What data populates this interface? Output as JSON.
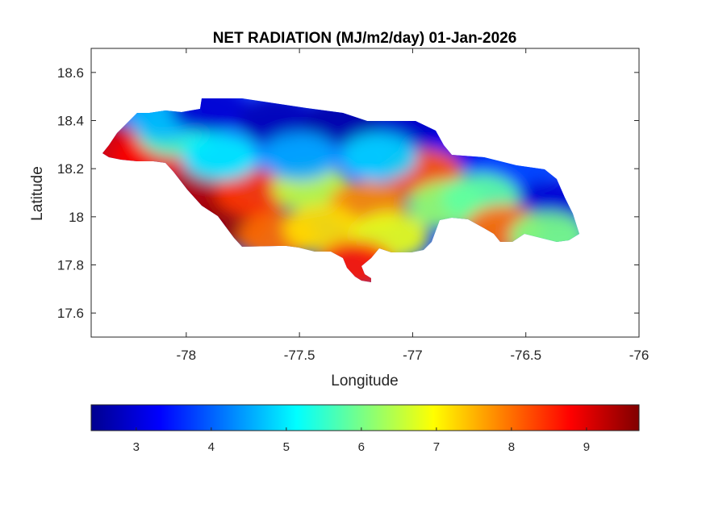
{
  "chart_data": {
    "type": "heatmap",
    "title": "NET RADIATION (MJ/m2/day) 01-Jan-2026",
    "xlabel": "Longitude",
    "ylabel": "Latitude",
    "xlim": [
      -78.42,
      -76
    ],
    "ylim": [
      17.5,
      18.7
    ],
    "xticks": [
      -78,
      -77.5,
      -77,
      -76.5,
      -76
    ],
    "yticks": [
      17.6,
      17.8,
      18,
      18.2,
      18.4,
      18.6
    ],
    "xtick_labels": [
      "-78",
      "-77.5",
      "-77",
      "-76.5",
      "-76"
    ],
    "ytick_labels": [
      "17.6",
      "17.8",
      "18",
      "18.2",
      "18.4",
      "18.6"
    ],
    "colorbar": {
      "colormap": "jet",
      "range": [
        2.4,
        9.7
      ],
      "ticks": [
        3,
        4,
        5,
        6,
        7,
        8,
        9
      ],
      "tick_labels": [
        "3",
        "4",
        "5",
        "6",
        "7",
        "8",
        "9"
      ],
      "placement": "bottom"
    },
    "grid": false,
    "zones": [
      {
        "lon": -78.3,
        "lat": 18.28,
        "value": 9.0
      },
      {
        "lon": -78.15,
        "lat": 18.25,
        "value": 8.8
      },
      {
        "lon": -77.95,
        "lat": 18.1,
        "value": 9.3
      },
      {
        "lon": -77.8,
        "lat": 17.98,
        "value": 9.5
      },
      {
        "lon": -77.7,
        "lat": 18.1,
        "value": 8.4
      },
      {
        "lon": -77.6,
        "lat": 17.92,
        "value": 8.0
      },
      {
        "lon": -78.05,
        "lat": 18.35,
        "value": 5.5
      },
      {
        "lon": -77.85,
        "lat": 18.25,
        "value": 5.0
      },
      {
        "lon": -78.1,
        "lat": 18.42,
        "value": 4.6
      },
      {
        "lon": -77.9,
        "lat": 18.45,
        "value": 3.0
      },
      {
        "lon": -77.6,
        "lat": 18.4,
        "value": 2.8
      },
      {
        "lon": -77.3,
        "lat": 18.4,
        "value": 2.7
      },
      {
        "lon": -77.0,
        "lat": 18.38,
        "value": 2.9
      },
      {
        "lon": -76.75,
        "lat": 18.3,
        "value": 3.2
      },
      {
        "lon": -76.55,
        "lat": 18.2,
        "value": 3.8
      },
      {
        "lon": -76.4,
        "lat": 18.05,
        "value": 3.0
      },
      {
        "lon": -77.45,
        "lat": 18.12,
        "value": 6.5
      },
      {
        "lon": -77.2,
        "lat": 18.05,
        "value": 7.8
      },
      {
        "lon": -77.4,
        "lat": 17.95,
        "value": 7.2
      },
      {
        "lon": -77.1,
        "lat": 17.92,
        "value": 6.8
      },
      {
        "lon": -76.95,
        "lat": 18.18,
        "value": 8.2
      },
      {
        "lon": -76.85,
        "lat": 18.05,
        "value": 6.2
      },
      {
        "lon": -76.7,
        "lat": 18.08,
        "value": 5.8
      },
      {
        "lon": -76.6,
        "lat": 17.95,
        "value": 8.0
      },
      {
        "lon": -76.4,
        "lat": 17.92,
        "value": 6.0
      },
      {
        "lon": -77.25,
        "lat": 17.8,
        "value": 8.6
      },
      {
        "lon": -77.5,
        "lat": 18.25,
        "value": 4.5
      },
      {
        "lon": -77.15,
        "lat": 18.25,
        "value": 4.8
      }
    ]
  }
}
